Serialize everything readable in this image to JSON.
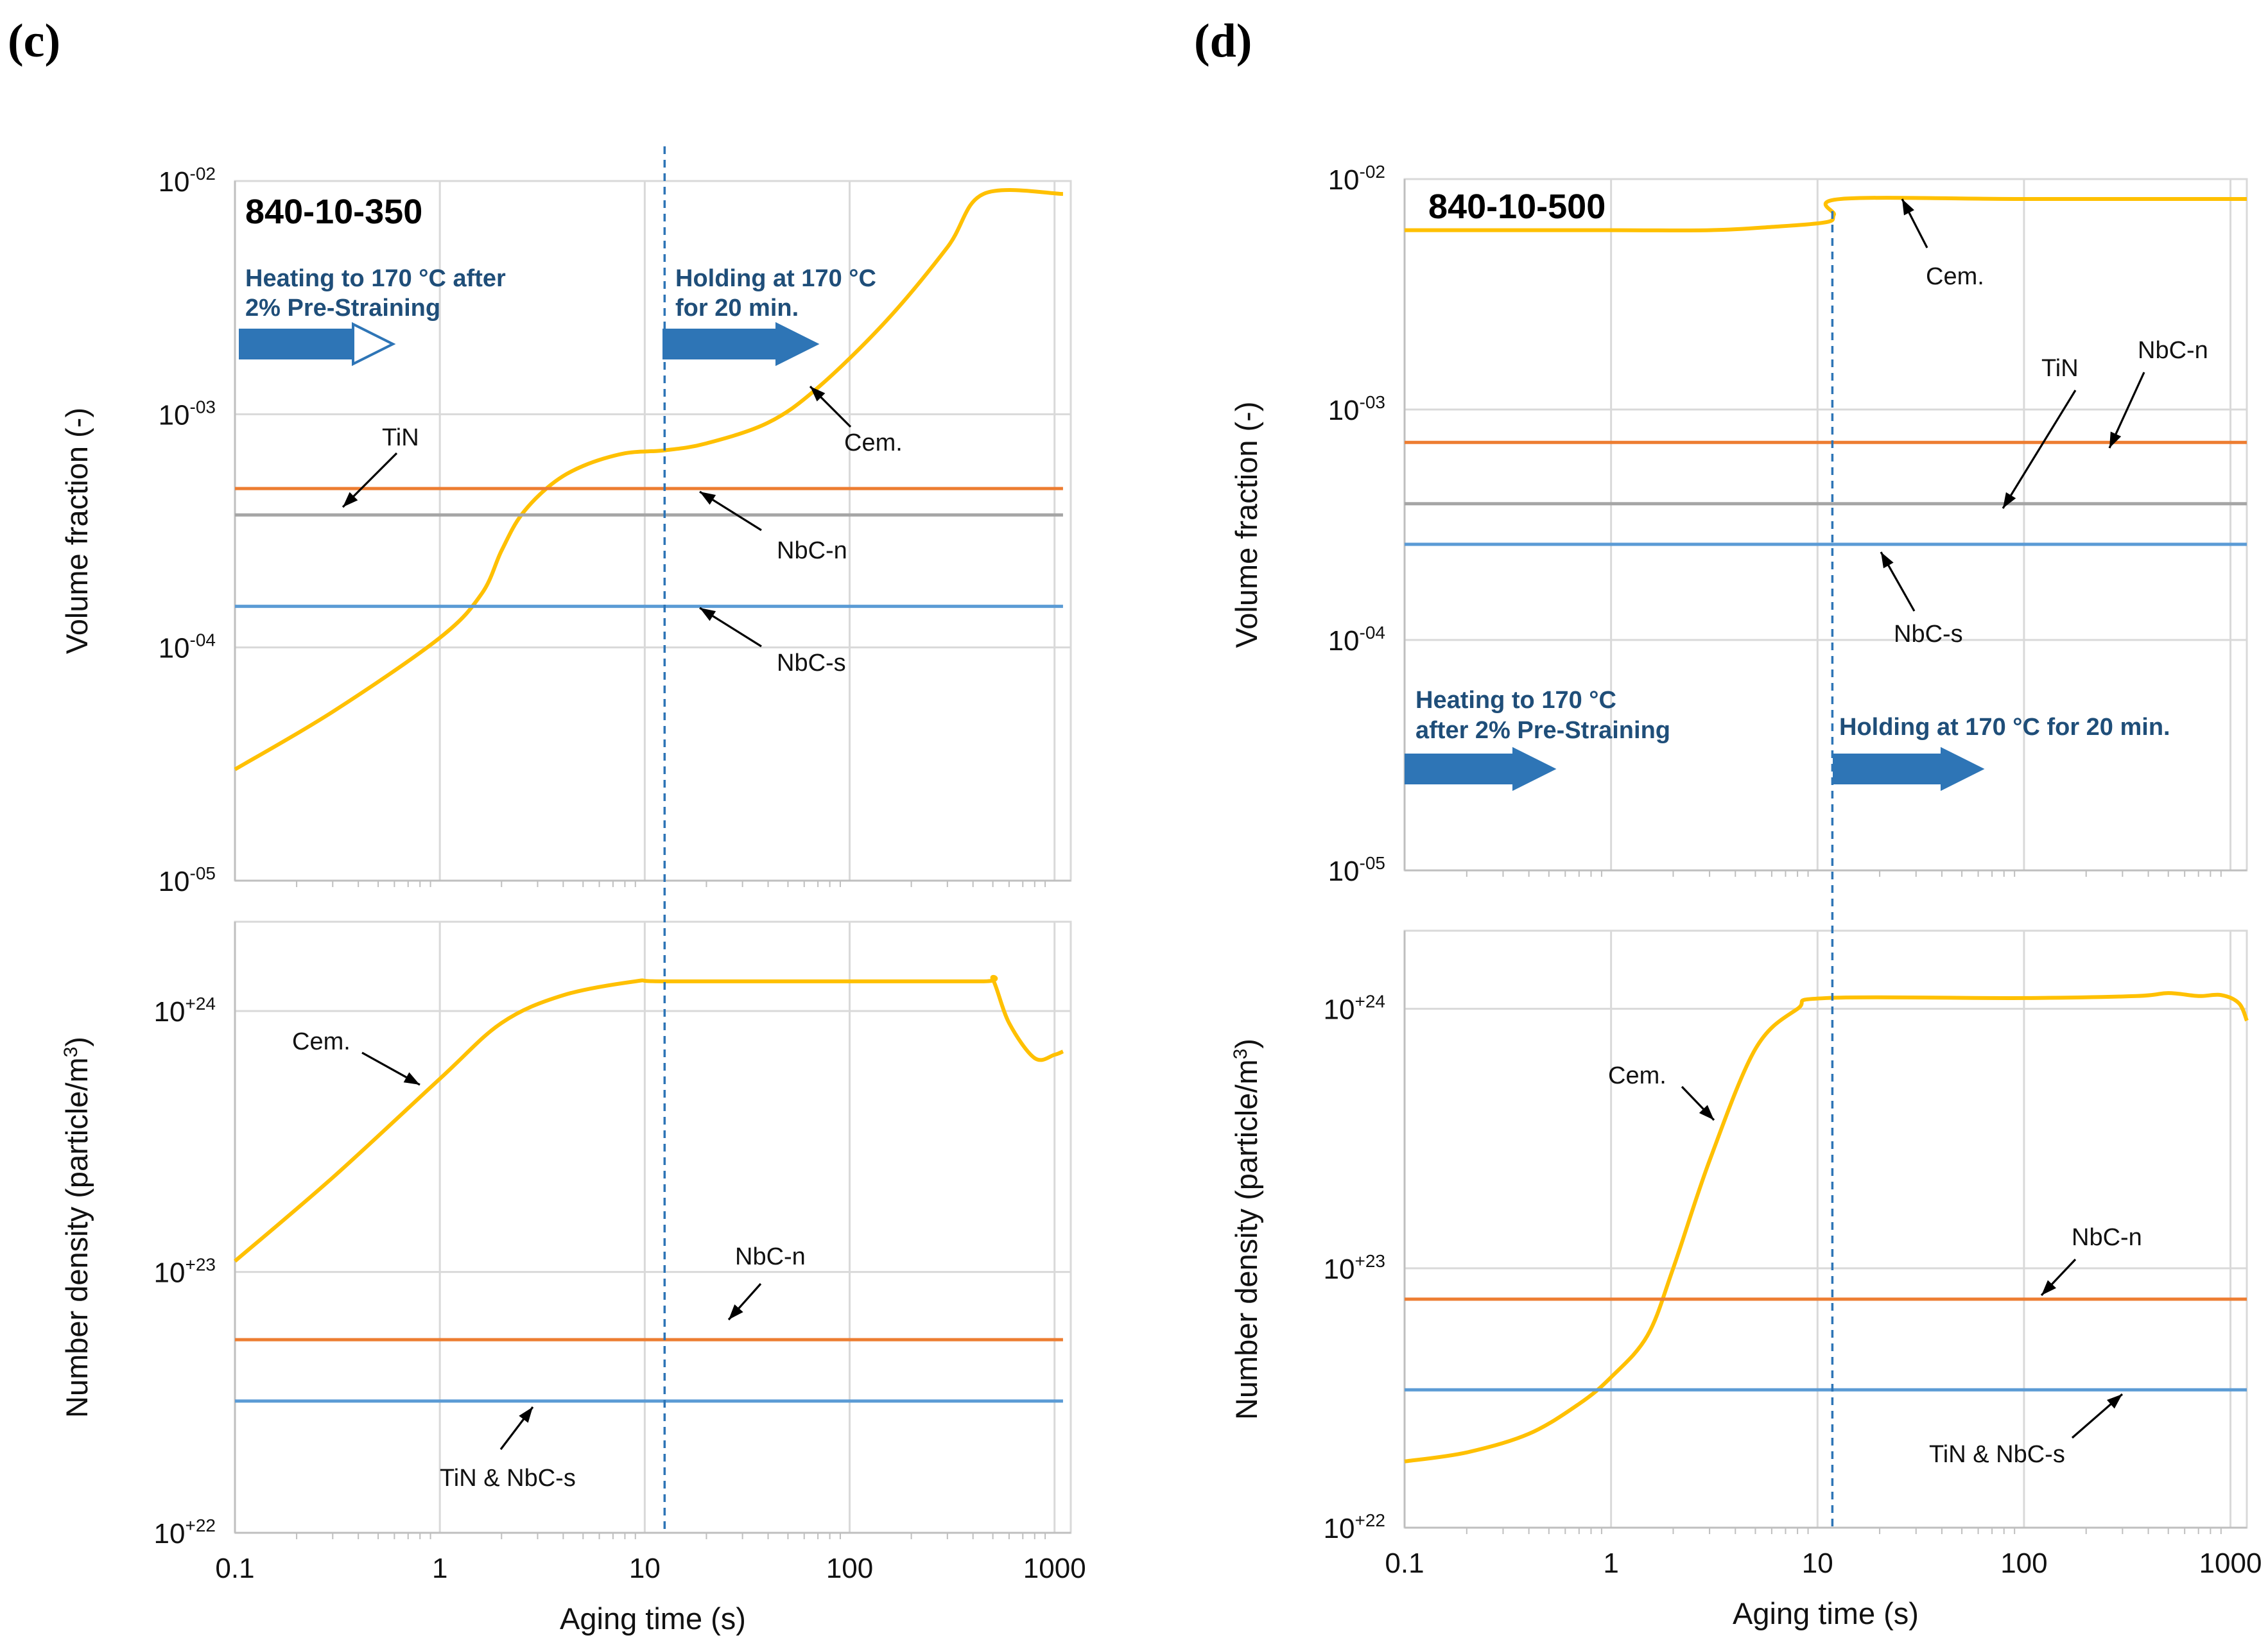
{
  "figure": {
    "panels": [
      {
        "id": "c",
        "label": "(c)",
        "sample": "840-10-350",
        "x_ticks": [
          "0.1",
          "1",
          "10",
          "100",
          "1000"
        ],
        "x_title": "Aging time (s)",
        "holding_start_s": 12.5,
        "stages": [
          {
            "line1": "Heating to 170 °C after",
            "line2": "2% Pre-Straining",
            "arrow_style": "open-head"
          },
          {
            "line1": "Holding at 170 °C",
            "line2": "for 20 min.",
            "arrow_style": "solid"
          }
        ],
        "volume_fraction": {
          "ylabel": "Volume fraction (-)",
          "y_ticks": [
            {
              "base": "10",
              "exp": "-02"
            },
            {
              "base": "10",
              "exp": "-03"
            },
            {
              "base": "10",
              "exp": "-04"
            },
            {
              "base": "10",
              "exp": "-05"
            }
          ],
          "annotations": [
            "TiN",
            "Cem.",
            "NbC-n",
            "NbC-s"
          ]
        },
        "number_density": {
          "ylabel": "Number density (particle/m",
          "ylabel_sup": "3",
          "ylabel_close": ")",
          "y_ticks": [
            {
              "base": "10",
              "exp": "+24"
            },
            {
              "base": "10",
              "exp": "+23"
            },
            {
              "base": "10",
              "exp": "+22"
            }
          ],
          "annotations": [
            "Cem.",
            "NbC-n",
            "TiN & NbC-s"
          ]
        }
      },
      {
        "id": "d",
        "label": "(d)",
        "sample": "840-10-500",
        "x_ticks": [
          "0.1",
          "1",
          "10",
          "100",
          "1000"
        ],
        "x_title": "Aging time (s)",
        "holding_start_s": 11.8,
        "stages": [
          {
            "line1": "Heating to 170 °C",
            "line2": "after 2% Pre-Straining",
            "arrow_style": "solid"
          },
          {
            "line1": "Holding at 170 °C for 20 min.",
            "line2": "",
            "arrow_style": "solid"
          }
        ],
        "volume_fraction": {
          "ylabel": "Volume fraction (-)",
          "y_ticks": [
            {
              "base": "10",
              "exp": "-02"
            },
            {
              "base": "10",
              "exp": "-03"
            },
            {
              "base": "10",
              "exp": "-04"
            },
            {
              "base": "10",
              "exp": "-05"
            }
          ],
          "annotations": [
            "Cem.",
            "TiN",
            "NbC-n",
            "NbC-s"
          ]
        },
        "number_density": {
          "ylabel": "Number density (particle/m",
          "ylabel_sup": "3",
          "ylabel_close": ")",
          "y_ticks": [
            {
              "base": "10",
              "exp": "+24"
            },
            {
              "base": "10",
              "exp": "+23"
            },
            {
              "base": "10",
              "exp": "+22"
            }
          ],
          "annotations": [
            "Cem.",
            "NbC-n",
            "TiN & NbC-s"
          ]
        }
      }
    ]
  },
  "colors": {
    "cementite": "#ffc000",
    "nbc_n": "#ed7d31",
    "tin": "#a5a5a5",
    "nbc_s": "#5b9bd5",
    "stage_arrow": "#2e75b6",
    "stage_text": "#1f4e79",
    "grid": "#d9d9d9",
    "holding_line": "#2e75b6"
  },
  "chart_data": [
    {
      "type": "line",
      "panel": "c",
      "title": "840-10-350 volume fraction",
      "xlabel": "Aging time (s)",
      "ylabel": "Volume fraction (-)",
      "xscale": "log",
      "yscale": "log",
      "xlim": [
        0.1,
        1200
      ],
      "ylim": [
        1e-05,
        0.01
      ],
      "series": [
        {
          "name": "Cem.",
          "color": "#ffc000",
          "points": [
            [
              0.1,
              3e-05
            ],
            [
              0.3,
              5.3e-05
            ],
            [
              1,
              0.00011
            ],
            [
              1.6,
              0.00017
            ],
            [
              2.0,
              0.00026
            ],
            [
              2.5,
              0.00037
            ],
            [
              3.5,
              0.0005
            ],
            [
              5,
              0.0006
            ],
            [
              8,
              0.00068
            ],
            [
              12.5,
              0.0007
            ],
            [
              20,
              0.00075
            ],
            [
              40,
              0.00092
            ],
            [
              70,
              0.0013
            ],
            [
              150,
              0.0025
            ],
            [
              300,
              0.0052
            ],
            [
              450,
              0.0088
            ],
            [
              1100,
              0.0088
            ]
          ]
        },
        {
          "name": "NbC-n",
          "color": "#ed7d31",
          "points": [
            [
              0.1,
              0.00048
            ],
            [
              1100,
              0.00048
            ]
          ]
        },
        {
          "name": "TiN",
          "color": "#a5a5a5",
          "points": [
            [
              0.1,
              0.00037
            ],
            [
              1100,
              0.00037
            ]
          ]
        },
        {
          "name": "NbC-s",
          "color": "#5b9bd5",
          "points": [
            [
              0.1,
              0.00015
            ],
            [
              1100,
              0.00015
            ]
          ]
        }
      ]
    },
    {
      "type": "line",
      "panel": "c",
      "title": "840-10-350 number density",
      "xlabel": "Aging time (s)",
      "ylabel": "Number density (particle/m3)",
      "xscale": "log",
      "yscale": "log",
      "xlim": [
        0.1,
        1200
      ],
      "ylim": [
        1e+22,
        2.2e+24
      ],
      "series": [
        {
          "name": "Cem.",
          "color": "#ffc000",
          "points": [
            [
              0.1,
              1.1e+23
            ],
            [
              0.3,
              2.3e+23
            ],
            [
              1,
              5.5e+23
            ],
            [
              2,
              9e+23
            ],
            [
              4,
              1.15e+24
            ],
            [
              9,
              1.3e+24
            ],
            [
              12.5,
              1.3e+24
            ],
            [
              100,
              1.3e+24
            ],
            [
              450,
              1.3e+24
            ],
            [
              500,
              1.32e+24
            ],
            [
              600,
              9e+23
            ],
            [
              800,
              6.6e+23
            ],
            [
              1000,
              6.8e+23
            ],
            [
              1100,
              7e+23
            ]
          ]
        },
        {
          "name": "NbC-n",
          "color": "#ed7d31",
          "points": [
            [
              0.1,
              5.5e+22
            ],
            [
              1100,
              5.5e+22
            ]
          ]
        },
        {
          "name": "TiN & NbC-s",
          "color": "#5b9bd5",
          "points": [
            [
              0.1,
              3.2e+22
            ],
            [
              1100,
              3.2e+22
            ]
          ]
        }
      ]
    },
    {
      "type": "line",
      "panel": "d",
      "title": "840-10-500 volume fraction",
      "xlabel": "Aging time (s)",
      "ylabel": "Volume fraction (-)",
      "xscale": "log",
      "yscale": "log",
      "xlim": [
        0.1,
        1200
      ],
      "ylim": [
        1e-05,
        0.01
      ],
      "series": [
        {
          "name": "Cem.",
          "color": "#ffc000",
          "points": [
            [
              0.1,
              0.006
            ],
            [
              1,
              0.006
            ],
            [
              3,
              0.006
            ],
            [
              6,
              0.0062
            ],
            [
              11,
              0.0065
            ],
            [
              12,
              0.007
            ],
            [
              13,
              0.0082
            ],
            [
              100,
              0.0082
            ],
            [
              1200,
              0.0082
            ]
          ]
        },
        {
          "name": "NbC-n",
          "color": "#ed7d31",
          "points": [
            [
              0.1,
              0.00072
            ],
            [
              1200,
              0.00072
            ]
          ]
        },
        {
          "name": "TiN",
          "color": "#a5a5a5",
          "points": [
            [
              0.1,
              0.00039
            ],
            [
              1200,
              0.00039
            ]
          ]
        },
        {
          "name": "NbC-s",
          "color": "#5b9bd5",
          "points": [
            [
              0.1,
              0.00026
            ],
            [
              1200,
              0.00026
            ]
          ]
        }
      ]
    },
    {
      "type": "line",
      "panel": "d",
      "title": "840-10-500 number density",
      "xlabel": "Aging time (s)",
      "ylabel": "Number density (particle/m3)",
      "xscale": "log",
      "yscale": "log",
      "xlim": [
        0.1,
        1200
      ],
      "ylim": [
        1e+22,
        2e+24
      ],
      "series": [
        {
          "name": "Cem.",
          "color": "#ffc000",
          "points": [
            [
              0.1,
              1.8e+22
            ],
            [
              0.2,
              1.95e+22
            ],
            [
              0.4,
              2.3e+22
            ],
            [
              0.7,
              3e+22
            ],
            [
              1,
              3.8e+22
            ],
            [
              1.5,
              5.5e+22
            ],
            [
              2,
              1e+23
            ],
            [
              3,
              2.6e+23
            ],
            [
              5,
              7e+23
            ],
            [
              8,
              1e+24
            ],
            [
              11,
              1.1e+24
            ],
            [
              100,
              1.1e+24
            ],
            [
              350,
              1.12e+24
            ],
            [
              500,
              1.15e+24
            ],
            [
              700,
              1.12e+24
            ],
            [
              900,
              1.13e+24
            ],
            [
              1100,
              1.05e+24
            ],
            [
              1200,
              9e+23
            ]
          ]
        },
        {
          "name": "NbC-n",
          "color": "#ed7d31",
          "points": [
            [
              0.1,
              7.6e+22
            ],
            [
              1200,
              7.6e+22
            ]
          ]
        },
        {
          "name": "TiN & NbC-s",
          "color": "#5b9bd5",
          "points": [
            [
              0.1,
              3.4e+22
            ],
            [
              1200,
              3.4e+22
            ]
          ]
        }
      ]
    }
  ]
}
